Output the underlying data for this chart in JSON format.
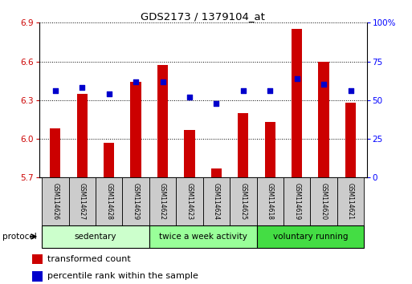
{
  "title": "GDS2173 / 1379104_at",
  "samples": [
    "GSM114626",
    "GSM114627",
    "GSM114628",
    "GSM114629",
    "GSM114622",
    "GSM114623",
    "GSM114624",
    "GSM114625",
    "GSM114618",
    "GSM114619",
    "GSM114620",
    "GSM114621"
  ],
  "transformed_count": [
    6.08,
    6.35,
    5.97,
    6.44,
    6.57,
    6.07,
    5.77,
    6.2,
    6.13,
    6.85,
    6.6,
    6.28
  ],
  "percentile_rank": [
    56,
    58,
    54,
    62,
    62,
    52,
    48,
    56,
    56,
    64,
    60,
    56
  ],
  "ylim_left": [
    5.7,
    6.9
  ],
  "ylim_right": [
    0,
    100
  ],
  "yticks_left": [
    5.7,
    6.0,
    6.3,
    6.6,
    6.9
  ],
  "yticks_right": [
    0,
    25,
    50,
    75,
    100
  ],
  "bar_color": "#cc0000",
  "scatter_color": "#0000cc",
  "groups": [
    {
      "label": "sedentary",
      "start": 0,
      "end": 3,
      "color": "#ccffcc"
    },
    {
      "label": "twice a week activity",
      "start": 4,
      "end": 7,
      "color": "#99ff99"
    },
    {
      "label": "voluntary running",
      "start": 8,
      "end": 11,
      "color": "#44dd44"
    }
  ],
  "protocol_label": "protocol",
  "legend_bar_label": "transformed count",
  "legend_scatter_label": "percentile rank within the sample",
  "label_area_color": "#cccccc",
  "base_value": 5.7,
  "bar_width": 0.4
}
